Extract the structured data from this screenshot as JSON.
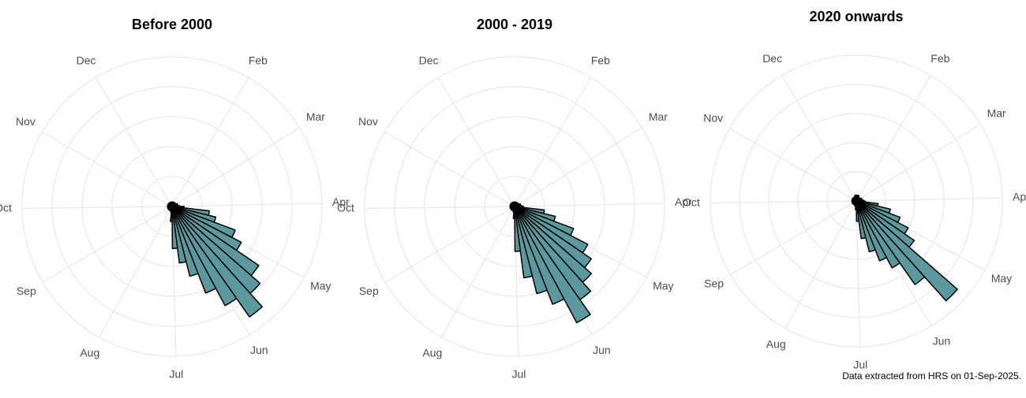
{
  "chart_data": [
    {
      "type": "bar",
      "polar": true,
      "title": "Before 2000",
      "x": [
        1,
        2,
        3,
        4,
        5,
        6,
        7,
        8,
        9,
        10,
        11,
        12,
        13,
        14,
        15,
        16,
        17,
        18,
        19,
        20,
        21,
        22,
        23,
        24,
        25,
        26,
        27,
        28,
        29,
        30,
        31,
        32,
        33,
        34,
        35,
        36,
        37,
        38,
        39,
        40,
        41,
        42,
        43,
        44,
        45,
        46,
        47,
        48,
        49,
        50,
        51,
        52
      ],
      "values": [
        3,
        3,
        3,
        3,
        3,
        3,
        3,
        3,
        3,
        4,
        4,
        4,
        5,
        8,
        25,
        30,
        45,
        52,
        70,
        78,
        90,
        75,
        62,
        48,
        38,
        28,
        10,
        4,
        3,
        3,
        3,
        3,
        3,
        3,
        3,
        3,
        3,
        3,
        3,
        3,
        3,
        3,
        3,
        3,
        3,
        3,
        3,
        3,
        3,
        3,
        3,
        3
      ],
      "color": "#5a9a9e",
      "xlim": [
        0,
        52.14
      ],
      "rlim": [
        0,
        100
      ],
      "rticks": [
        20,
        40,
        60,
        80,
        100
      ],
      "xticks": [
        {
          "value": 4.43,
          "label": "Feb"
        },
        {
          "value": 8.43,
          "label": "Mar"
        },
        {
          "value": 12.86,
          "label": "Apr"
        },
        {
          "value": 17.14,
          "label": "May"
        },
        {
          "value": 21.57,
          "label": "Jun"
        },
        {
          "value": 25.86,
          "label": "Jul"
        },
        {
          "value": 30.29,
          "label": "Aug"
        },
        {
          "value": 34.71,
          "label": "Sep"
        },
        {
          "value": 39,
          "label": "Oct"
        },
        {
          "value": 43.43,
          "label": "Nov"
        },
        {
          "value": 47.71,
          "label": "Dec"
        }
      ],
      "grid": true
    },
    {
      "type": "bar",
      "polar": true,
      "title": "2000 - 2019",
      "x": [
        1,
        2,
        3,
        4,
        5,
        6,
        7,
        8,
        9,
        10,
        11,
        12,
        13,
        14,
        15,
        16,
        17,
        18,
        19,
        20,
        21,
        22,
        23,
        24,
        25,
        26,
        27,
        28,
        29,
        30,
        31,
        32,
        33,
        34,
        35,
        36,
        37,
        38,
        39,
        40,
        41,
        42,
        43,
        44,
        45,
        46,
        47,
        48,
        49,
        50,
        51,
        52
      ],
      "values": [
        3,
        3,
        3,
        3,
        3,
        3,
        3,
        3,
        3,
        4,
        4,
        4,
        5,
        6,
        20,
        28,
        42,
        55,
        62,
        68,
        76,
        88,
        70,
        60,
        48,
        30,
        8,
        4,
        3,
        3,
        3,
        3,
        3,
        3,
        3,
        3,
        3,
        3,
        3,
        3,
        3,
        3,
        3,
        3,
        3,
        3,
        3,
        3,
        3,
        3,
        3,
        3
      ],
      "color": "#5a9a9e",
      "xlim": [
        0,
        52.14
      ],
      "rlim": [
        0,
        100
      ],
      "rticks": [
        20,
        40,
        60,
        80,
        100
      ],
      "xticks": [
        {
          "value": 4.43,
          "label": "Feb"
        },
        {
          "value": 8.43,
          "label": "Mar"
        },
        {
          "value": 12.86,
          "label": "Apr"
        },
        {
          "value": 17.14,
          "label": "May"
        },
        {
          "value": 21.57,
          "label": "Jun"
        },
        {
          "value": 25.86,
          "label": "Jul"
        },
        {
          "value": 30.29,
          "label": "Aug"
        },
        {
          "value": 34.71,
          "label": "Sep"
        },
        {
          "value": 39,
          "label": "Oct"
        },
        {
          "value": 43.43,
          "label": "Nov"
        },
        {
          "value": 47.71,
          "label": "Dec"
        }
      ],
      "grid": true
    },
    {
      "type": "bar",
      "polar": true,
      "title": "2020 onwards",
      "x": [
        1,
        2,
        3,
        4,
        5,
        6,
        7,
        8,
        9,
        10,
        11,
        12,
        13,
        14,
        15,
        16,
        17,
        18,
        19,
        20,
        21,
        22,
        23,
        24,
        25,
        26,
        27,
        28,
        29,
        30,
        31,
        32,
        33,
        34,
        35,
        36,
        37,
        38,
        39,
        40,
        41,
        42,
        43,
        44,
        45,
        46,
        47,
        48,
        49,
        50,
        51,
        52
      ],
      "values": [
        4,
        4,
        4,
        4,
        3,
        3,
        3,
        3,
        3,
        4,
        4,
        4,
        5,
        6,
        15,
        24,
        32,
        40,
        48,
        92,
        70,
        52,
        44,
        36,
        26,
        14,
        6,
        4,
        3,
        3,
        3,
        3,
        3,
        3,
        3,
        3,
        3,
        3,
        3,
        3,
        3,
        3,
        3,
        3,
        3,
        3,
        3,
        3,
        3,
        3,
        4,
        4
      ],
      "color": "#5a9a9e",
      "xlim": [
        0,
        52.14
      ],
      "rlim": [
        0,
        100
      ],
      "rticks": [
        20,
        40,
        60,
        80,
        100
      ],
      "xticks": [
        {
          "value": 4.43,
          "label": "Feb"
        },
        {
          "value": 8.43,
          "label": "Mar"
        },
        {
          "value": 12.86,
          "label": "Apr"
        },
        {
          "value": 17.14,
          "label": "May"
        },
        {
          "value": 21.57,
          "label": "Jun"
        },
        {
          "value": 25.86,
          "label": "Jul"
        },
        {
          "value": 30.29,
          "label": "Aug"
        },
        {
          "value": 34.71,
          "label": "Sep"
        },
        {
          "value": 39,
          "label": "Oct"
        },
        {
          "value": 43.43,
          "label": "Nov"
        },
        {
          "value": 47.71,
          "label": "Dec"
        }
      ],
      "grid": true
    }
  ],
  "caption": "Data extracted from HRS on 01-Sep-2025."
}
